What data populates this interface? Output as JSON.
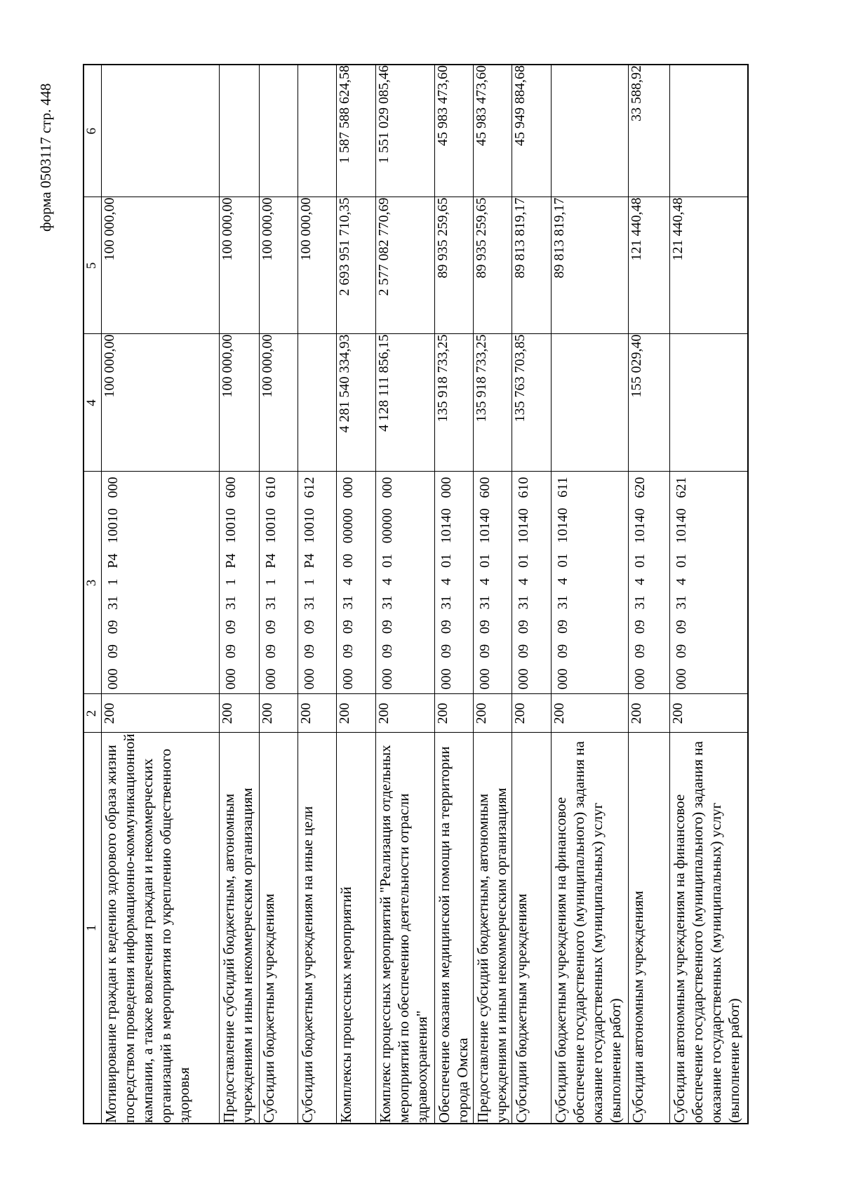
{
  "page": {
    "form_label": "форма 0503117 стр. 448"
  },
  "table": {
    "header": [
      "1",
      "2",
      "3",
      "4",
      "5",
      "6"
    ],
    "rows": [
      {
        "name": "Мотивирование граждан к ведению здорового образа жизни посредством проведения информационно-коммуникационной кампании, а также вовлечения граждан и некоммерческих организаций в мероприятия по укреплению общественного здоровья",
        "section": "200",
        "code": "000 09 09 31 1 Р4 10010 000",
        "col4": "100 000,00",
        "col5": "100 000,00",
        "col6": ""
      },
      {
        "name": "Предоставление субсидий бюджетным, автономным учреждениям и иным некоммерческим организациям",
        "section": "200",
        "code": "000 09 09 31 1 Р4 10010 600",
        "col4": "100 000,00",
        "col5": "100 000,00",
        "col6": ""
      },
      {
        "name": "Субсидии бюджетным учреждениям",
        "section": "200",
        "code": "000 09 09 31 1 Р4 10010 610",
        "col4": "100 000,00",
        "col5": "100 000,00",
        "col6": ""
      },
      {
        "name": "Субсидии бюджетным учреждениям на иные цели",
        "section": "200",
        "code": "000 09 09 31 1 Р4 10010 612",
        "col4": "",
        "col5": "100 000,00",
        "col6": ""
      },
      {
        "name": "Комплексы процессных мероприятий",
        "section": "200",
        "code": "000 09 09 31 4 00 00000 000",
        "col4": "4 281 540 334,93",
        "col5": "2 693 951 710,35",
        "col6": "1 587 588 624,58"
      },
      {
        "name": "Комплекс процессных мероприятий \"Реализация отдельных мероприятий по обеспечению деятельности отрасли здравоохранения\"",
        "section": "200",
        "code": "000 09 09 31 4 01 00000 000",
        "col4": "4 128 111 856,15",
        "col5": "2 577 082 770,69",
        "col6": "1 551 029 085,46"
      },
      {
        "name": "Обеспечение оказания медицинской помощи на территории города Омска",
        "section": "200",
        "code": "000 09 09 31 4 01 10140 000",
        "col4": "135 918 733,25",
        "col5": "89 935 259,65",
        "col6": "45 983 473,60"
      },
      {
        "name": "Предоставление субсидий бюджетным, автономным учреждениям и иным некоммерческим организациям",
        "section": "200",
        "code": "000 09 09 31 4 01 10140 600",
        "col4": "135 918 733,25",
        "col5": "89 935 259,65",
        "col6": "45 983 473,60"
      },
      {
        "name": "Субсидии бюджетным учреждениям",
        "section": "200",
        "code": "000 09 09 31 4 01 10140 610",
        "col4": "135 763 703,85",
        "col5": "89 813 819,17",
        "col6": "45 949 884,68"
      },
      {
        "name": "Субсидии бюджетным учреждениям на финансовое обеспечение государственного (муниципального) задания на оказание государственных (муниципальных) услуг (выполнение работ)",
        "section": "200",
        "code": "000 09 09 31 4 01 10140 611",
        "col4": "",
        "col5": "89 813 819,17",
        "col6": ""
      },
      {
        "name": "Субсидии автономным учреждениям",
        "section": "200",
        "code": "000 09 09 31 4 01 10140 620",
        "col4": "155 029,40",
        "col5": "121 440,48",
        "col6": "33 588,92"
      },
      {
        "name": "Субсидии автономным учреждениям на финансовое обеспечение государственного (муниципального) задания на оказание государственных (муниципальных) услуг (выполнение работ)",
        "section": "200",
        "code": "000 09 09 31 4 01 10140 621",
        "col4": "",
        "col5": "121 440,48",
        "col6": ""
      }
    ]
  }
}
